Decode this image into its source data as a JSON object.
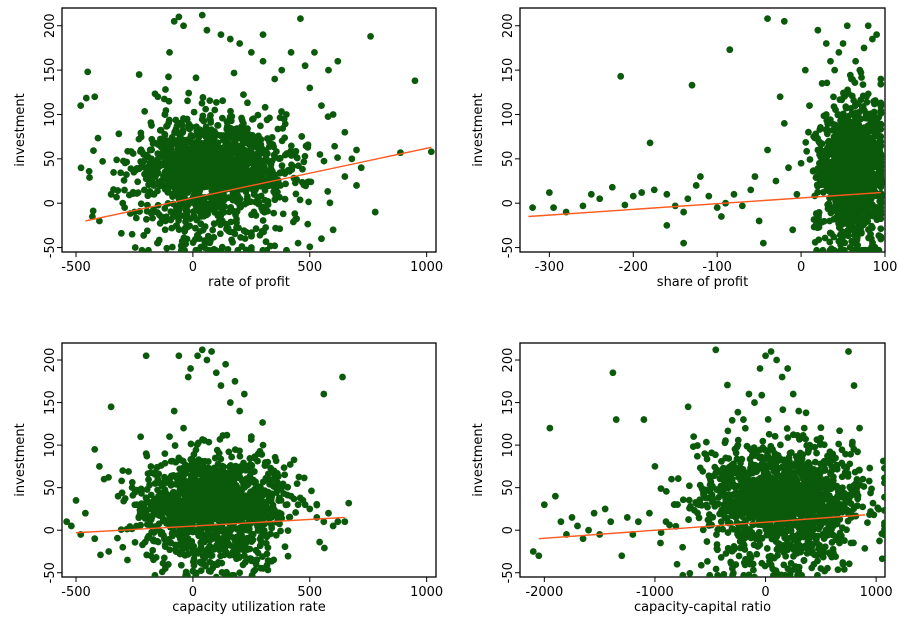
{
  "colors": {
    "points": "#0b5a0b",
    "fit_line": "#ff5a1f",
    "axis": "#000000",
    "background": "#ffffff"
  },
  "chart_data": [
    {
      "type": "scatter",
      "title": "",
      "xlabel": "rate of profit",
      "ylabel": "investment",
      "xlim": [
        -560,
        1040
      ],
      "ylim": [
        -55,
        220
      ],
      "x_ticks": [
        -500,
        0,
        500,
        1000
      ],
      "y_ticks": [
        -50,
        0,
        50,
        100,
        150,
        200
      ],
      "grid": false,
      "fit_line": {
        "x": [
          -460,
          1020
        ],
        "y": [
          -20,
          63
        ]
      },
      "cloud": {
        "x_center": 80,
        "x_spread": 170,
        "y_center": 18,
        "y_spread": 38,
        "n": 1500
      },
      "points": [
        [
          -480,
          110
        ],
        [
          -450,
          148
        ],
        [
          -420,
          120
        ],
        [
          -430,
          -15
        ],
        [
          -400,
          -20
        ],
        [
          -260,
          -35
        ],
        [
          -230,
          145
        ],
        [
          -200,
          40
        ],
        [
          -180,
          60
        ],
        [
          -150,
          120
        ],
        [
          -120,
          100
        ],
        [
          -100,
          170
        ],
        [
          -80,
          205
        ],
        [
          -60,
          210
        ],
        [
          -40,
          200
        ],
        [
          40,
          212
        ],
        [
          60,
          195
        ],
        [
          120,
          190
        ],
        [
          160,
          185
        ],
        [
          200,
          180
        ],
        [
          250,
          170
        ],
        [
          300,
          160
        ],
        [
          350,
          140
        ],
        [
          400,
          100
        ],
        [
          460,
          208
        ],
        [
          500,
          130
        ],
        [
          550,
          110
        ],
        [
          600,
          100
        ],
        [
          650,
          80
        ],
        [
          700,
          60
        ],
        [
          760,
          188
        ],
        [
          780,
          -10
        ],
        [
          950,
          138
        ],
        [
          1020,
          58
        ],
        [
          650,
          30
        ],
        [
          600,
          -30
        ],
        [
          550,
          -40
        ],
        [
          700,
          20
        ],
        [
          450,
          -45
        ],
        [
          350,
          -48
        ],
        [
          250,
          -50
        ],
        [
          150,
          -52
        ],
        [
          50,
          -50
        ],
        [
          -50,
          -48
        ],
        [
          -150,
          -45
        ],
        [
          620,
          160
        ],
        [
          580,
          150
        ],
        [
          520,
          170
        ],
        [
          480,
          155
        ],
        [
          420,
          170
        ],
        [
          380,
          150
        ],
        [
          300,
          190
        ],
        [
          -300,
          0
        ],
        [
          -350,
          10
        ],
        [
          -250,
          -10
        ],
        [
          720,
          40
        ],
        [
          680,
          50
        ]
      ]
    },
    {
      "type": "scatter",
      "title": "",
      "xlabel": "share of profit",
      "ylabel": "investment",
      "xlim": [
        -335,
        100
      ],
      "ylim": [
        -55,
        220
      ],
      "x_ticks": [
        -300,
        -200,
        -100,
        0,
        100
      ],
      "y_ticks": [
        -50,
        0,
        50,
        100,
        150,
        200
      ],
      "grid": false,
      "fit_line": {
        "x": [
          -325,
          95
        ],
        "y": [
          -15,
          12
        ]
      },
      "cloud": {
        "x_center": 62,
        "x_spread": 20,
        "y_center": 20,
        "y_spread": 40,
        "n": 1500
      },
      "points": [
        [
          -320,
          -5
        ],
        [
          -300,
          12
        ],
        [
          -295,
          -5
        ],
        [
          -280,
          -10
        ],
        [
          -260,
          -3
        ],
        [
          -250,
          10
        ],
        [
          -240,
          5
        ],
        [
          -225,
          18
        ],
        [
          -215,
          143
        ],
        [
          -210,
          -2
        ],
        [
          -200,
          8
        ],
        [
          -190,
          12
        ],
        [
          -180,
          68
        ],
        [
          -175,
          15
        ],
        [
          -160,
          10
        ],
        [
          -150,
          -3
        ],
        [
          -140,
          -10
        ],
        [
          -135,
          5
        ],
        [
          -130,
          133
        ],
        [
          -125,
          20
        ],
        [
          -120,
          30
        ],
        [
          -110,
          8
        ],
        [
          -100,
          -5
        ],
        [
          -95,
          -15
        ],
        [
          -90,
          0
        ],
        [
          -85,
          173
        ],
        [
          -80,
          10
        ],
        [
          -70,
          -3
        ],
        [
          -60,
          15
        ],
        [
          -55,
          30
        ],
        [
          -50,
          -20
        ],
        [
          -45,
          -45
        ],
        [
          -40,
          60
        ],
        [
          -30,
          25
        ],
        [
          -25,
          120
        ],
        [
          -20,
          90
        ],
        [
          -15,
          40
        ],
        [
          -10,
          -30
        ],
        [
          -5,
          10
        ],
        [
          0,
          45
        ],
        [
          5,
          150
        ],
        [
          10,
          110
        ],
        [
          15,
          75
        ],
        [
          20,
          60
        ],
        [
          25,
          135
        ],
        [
          30,
          100
        ],
        [
          35,
          160
        ],
        [
          40,
          150
        ],
        [
          45,
          170
        ],
        [
          50,
          180
        ],
        [
          55,
          200
        ],
        [
          60,
          140
        ],
        [
          65,
          160
        ],
        [
          70,
          150
        ],
        [
          75,
          175
        ],
        [
          -40,
          208
        ],
        [
          -20,
          205
        ],
        [
          20,
          195
        ],
        [
          30,
          180
        ],
        [
          80,
          200
        ],
        [
          85,
          185
        ],
        [
          90,
          190
        ],
        [
          95,
          140
        ],
        [
          -140,
          -45
        ],
        [
          -160,
          -25
        ]
      ]
    },
    {
      "type": "scatter",
      "title": "",
      "xlabel": "capacity utilization rate",
      "ylabel": "investment",
      "xlim": [
        -560,
        1040
      ],
      "ylim": [
        -55,
        220
      ],
      "x_ticks": [
        -500,
        0,
        500,
        1000
      ],
      "y_ticks": [
        -50,
        0,
        50,
        100,
        150,
        200
      ],
      "grid": false,
      "fit_line": {
        "x": [
          -500,
          650
        ],
        "y": [
          -3,
          15
        ]
      },
      "cloud": {
        "x_center": 80,
        "x_spread": 150,
        "y_center": 15,
        "y_spread": 32,
        "n": 1500
      },
      "points": [
        [
          -540,
          10
        ],
        [
          -520,
          5
        ],
        [
          -500,
          35
        ],
        [
          -480,
          -5
        ],
        [
          -460,
          20
        ],
        [
          -420,
          95
        ],
        [
          -400,
          75
        ],
        [
          -380,
          60
        ],
        [
          -350,
          145
        ],
        [
          -320,
          40
        ],
        [
          -300,
          -20
        ],
        [
          -280,
          -35
        ],
        [
          -260,
          50
        ],
        [
          -240,
          30
        ],
        [
          -200,
          90
        ],
        [
          -180,
          -30
        ],
        [
          -150,
          60
        ],
        [
          -120,
          90
        ],
        [
          -100,
          110
        ],
        [
          -80,
          140
        ],
        [
          -60,
          205
        ],
        [
          -40,
          120
        ],
        [
          -20,
          180
        ],
        [
          -10,
          190
        ],
        [
          20,
          205
        ],
        [
          40,
          212
        ],
        [
          60,
          200
        ],
        [
          80,
          210
        ],
        [
          100,
          185
        ],
        [
          120,
          170
        ],
        [
          140,
          195
        ],
        [
          160,
          150
        ],
        [
          180,
          175
        ],
        [
          200,
          140
        ],
        [
          220,
          160
        ],
        [
          250,
          110
        ],
        [
          280,
          90
        ],
        [
          300,
          100
        ],
        [
          320,
          80
        ],
        [
          350,
          60
        ],
        [
          380,
          50
        ],
        [
          420,
          40
        ],
        [
          450,
          30
        ],
        [
          480,
          30
        ],
        [
          500,
          25
        ],
        [
          530,
          15
        ],
        [
          560,
          10
        ],
        [
          580,
          20
        ],
        [
          600,
          5
        ],
        [
          620,
          10
        ],
        [
          640,
          180
        ],
        [
          650,
          10
        ],
        [
          560,
          160
        ],
        [
          -200,
          205
        ],
        [
          -300,
          70
        ],
        [
          -420,
          -10
        ],
        [
          -360,
          -25
        ],
        [
          200,
          -50
        ],
        [
          100,
          -55
        ],
        [
          0,
          -48
        ],
        [
          300,
          -45
        ]
      ]
    },
    {
      "type": "scatter",
      "title": "",
      "xlabel": "capacity-capital ratio",
      "ylabel": "investment",
      "xlim": [
        -2220,
        1080
      ],
      "ylim": [
        -55,
        220
      ],
      "x_ticks": [
        -2000,
        -1000,
        0,
        1000
      ],
      "y_ticks": [
        -50,
        0,
        50,
        100,
        150,
        200
      ],
      "grid": false,
      "fit_line": {
        "x": [
          -2050,
          900
        ],
        "y": [
          -10,
          18
        ]
      },
      "cloud": {
        "x_center": 150,
        "x_spread": 360,
        "y_center": 18,
        "y_spread": 38,
        "n": 1500
      },
      "points": [
        [
          -2100,
          -25
        ],
        [
          -2050,
          -30
        ],
        [
          -2000,
          30
        ],
        [
          -1950,
          120
        ],
        [
          -1900,
          40
        ],
        [
          -1850,
          10
        ],
        [
          -1800,
          -5
        ],
        [
          -1750,
          15
        ],
        [
          -1700,
          5
        ],
        [
          -1650,
          -10
        ],
        [
          -1600,
          0
        ],
        [
          -1550,
          20
        ],
        [
          -1500,
          -5
        ],
        [
          -1450,
          25
        ],
        [
          -1400,
          10
        ],
        [
          -1380,
          185
        ],
        [
          -1350,
          130
        ],
        [
          -1300,
          -30
        ],
        [
          -1250,
          15
        ],
        [
          -1200,
          -5
        ],
        [
          -1150,
          10
        ],
        [
          -1100,
          130
        ],
        [
          -1050,
          20
        ],
        [
          -1000,
          75
        ],
        [
          -950,
          -15
        ],
        [
          -900,
          10
        ],
        [
          -850,
          60
        ],
        [
          -800,
          -40
        ],
        [
          -750,
          -20
        ],
        [
          -700,
          145
        ],
        [
          -650,
          110
        ],
        [
          -600,
          30
        ],
        [
          -550,
          90
        ],
        [
          -500,
          60
        ],
        [
          -450,
          212
        ],
        [
          -400,
          10
        ],
        [
          -350,
          40
        ],
        [
          -300,
          60
        ],
        [
          -250,
          100
        ],
        [
          -200,
          130
        ],
        [
          -150,
          160
        ],
        [
          -100,
          150
        ],
        [
          -50,
          190
        ],
        [
          0,
          205
        ],
        [
          50,
          210
        ],
        [
          100,
          200
        ],
        [
          150,
          180
        ],
        [
          200,
          190
        ],
        [
          250,
          160
        ],
        [
          300,
          140
        ],
        [
          350,
          120
        ],
        [
          400,
          100
        ],
        [
          450,
          80
        ],
        [
          500,
          70
        ],
        [
          550,
          60
        ],
        [
          600,
          55
        ],
        [
          650,
          40
        ],
        [
          700,
          30
        ],
        [
          750,
          210
        ],
        [
          800,
          170
        ],
        [
          850,
          120
        ],
        [
          880,
          60
        ],
        [
          -300,
          -45
        ],
        [
          -100,
          -55
        ],
        [
          100,
          -50
        ],
        [
          300,
          -48
        ],
        [
          500,
          -45
        ],
        [
          700,
          -40
        ]
      ]
    }
  ]
}
